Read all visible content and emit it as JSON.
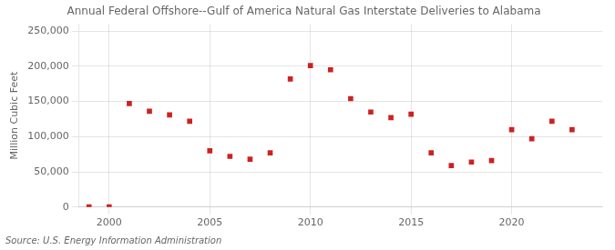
{
  "chart_data": {
    "type": "scatter",
    "title": "Annual Federal Offshore--Gulf of America Natural Gas Interstate Deliveries to Alabama",
    "ylabel": "Million Cubic Feet",
    "annotation": "Source: U.S. Energy Information Administration",
    "x": [
      1999,
      2000,
      2001,
      2002,
      2003,
      2004,
      2005,
      2006,
      2007,
      2008,
      2009,
      2010,
      2011,
      2012,
      2013,
      2014,
      2015,
      2016,
      2017,
      2018,
      2019,
      2020,
      2021,
      2022,
      2023
    ],
    "values": [
      200,
      200,
      147000,
      136000,
      131000,
      122000,
      80000,
      72000,
      68000,
      77000,
      182000,
      201000,
      195000,
      154000,
      135000,
      127000,
      132000,
      77000,
      59000,
      64000,
      66000,
      110000,
      97000,
      122000,
      110000
    ],
    "color": "#cc2222",
    "marker": "square",
    "xlim": [
      1998.5,
      2024.5
    ],
    "ylim": [
      0,
      260000
    ],
    "xticks": [
      2000,
      2005,
      2010,
      2015,
      2020
    ],
    "yticks": [
      0,
      {
        "value": 50000,
        "label": "50,000"
      },
      {
        "value": 100000,
        "label": "100,000"
      },
      {
        "value": 150000,
        "label": "150,000"
      },
      {
        "value": 200000,
        "label": "200,000"
      },
      {
        "value": 250000,
        "label": "250,000"
      }
    ],
    "grid": true
  }
}
